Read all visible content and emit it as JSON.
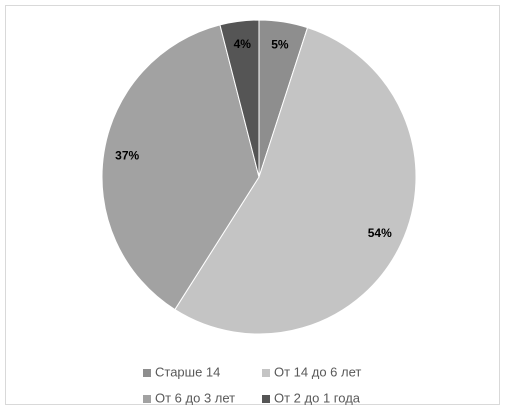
{
  "chart_data": {
    "type": "pie",
    "categories": [
      "Старше 14",
      "От 14 до 6 лет",
      "От 6 до 3 лет",
      "От 2 до 1 года"
    ],
    "values": [
      5,
      54,
      37,
      4
    ],
    "value_labels": [
      "5%",
      "54%",
      "37%",
      "4%"
    ],
    "colors": [
      "#8e8e8e",
      "#c4c4c4",
      "#a2a2a2",
      "#555555"
    ],
    "legend": "bottom"
  }
}
